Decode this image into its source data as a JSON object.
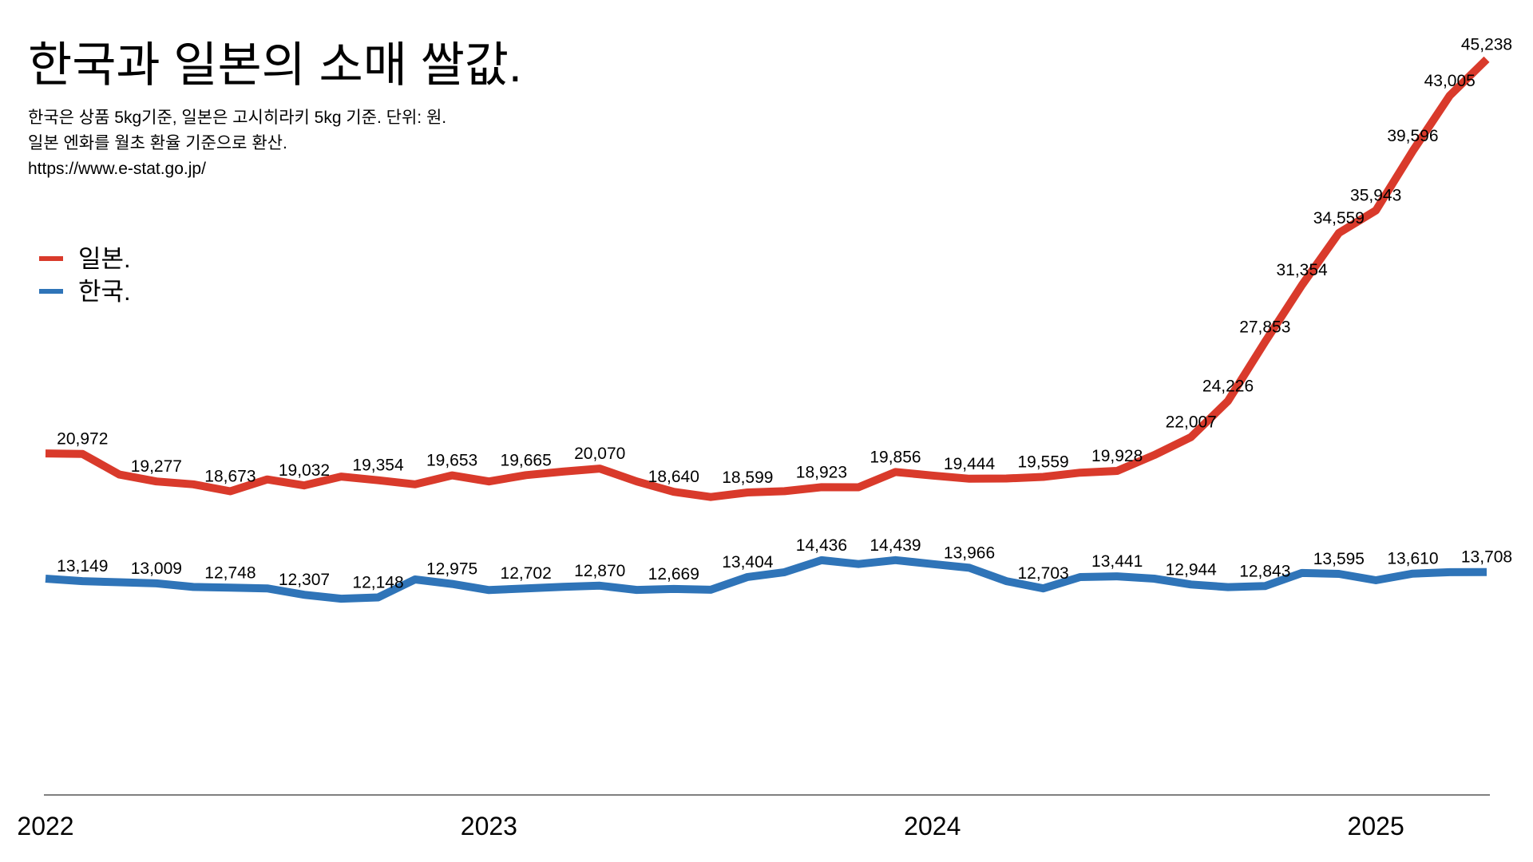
{
  "chart_data": {
    "type": "line",
    "title": "한국과 일본의 소매 쌀값.",
    "subtitle": [
      "한국은 상품 5kg기준, 일본은 고시히라키 5kg 기준. 단위: 원.",
      "일본 엔화를 월초 환율 기준으로 환산.",
      "https://www.e-stat.go.jp/"
    ],
    "xlim": [
      0,
      39
    ],
    "xticks": [
      {
        "value": 0,
        "label": "2022"
      },
      {
        "value": 12,
        "label": "2023"
      },
      {
        "value": 24,
        "label": "2024"
      },
      {
        "value": 36,
        "label": "2025"
      }
    ],
    "ylim": [
      0,
      48000
    ],
    "grid": false,
    "legend": "upper left",
    "series": [
      {
        "name": "일본.",
        "color": "#d93a2b",
        "values": [
          21000,
          20972,
          19700,
          19277,
          19100,
          18673,
          19400,
          19032,
          19580,
          19354,
          19100,
          19653,
          19280,
          19665,
          19880,
          20070,
          19280,
          18640,
          18320,
          18599,
          18680,
          18923,
          18920,
          19856,
          19640,
          19444,
          19460,
          19559,
          19820,
          19928,
          20900,
          22007,
          24226,
          27853,
          31354,
          34559,
          35943,
          39596,
          43005,
          45238
        ],
        "value_labels": [
          null,
          "20,972",
          null,
          "19,277",
          null,
          "18,673",
          null,
          "19,032",
          null,
          "19,354",
          null,
          "19,653",
          null,
          "19,665",
          null,
          "20,070",
          null,
          "18,640",
          null,
          "18,599",
          null,
          "18,923",
          null,
          "19,856",
          null,
          "19,444",
          null,
          "19,559",
          null,
          "19,928",
          null,
          "22,007",
          "24,226",
          "27,853",
          "31,354",
          "34,559",
          "35,943",
          "39,596",
          "43,005",
          "45,238"
        ]
      },
      {
        "name": "한국.",
        "color": "#2f74b8",
        "values": [
          13300,
          13149,
          13080,
          13009,
          12790,
          12748,
          12700,
          12307,
          12070,
          12148,
          13250,
          12975,
          12600,
          12702,
          12800,
          12870,
          12610,
          12669,
          12620,
          13404,
          13700,
          14436,
          14200,
          14439,
          14200,
          13966,
          13150,
          12703,
          13400,
          13441,
          13300,
          12944,
          12780,
          12843,
          13650,
          13595,
          13200,
          13610,
          13700,
          13708
        ],
        "value_labels": [
          null,
          "13,149",
          null,
          "13,009",
          null,
          "12,748",
          null,
          "12,307",
          null,
          "12,148",
          null,
          "12,975",
          null,
          "12,702",
          null,
          "12,870",
          null,
          "12,669",
          null,
          "13,404",
          null,
          "14,436",
          null,
          "14,439",
          null,
          "13,966",
          null,
          "12,703",
          null,
          "13,441",
          null,
          "12,944",
          null,
          "12,843",
          null,
          "13,595",
          null,
          "13,610",
          null,
          "13,708"
        ]
      }
    ]
  }
}
